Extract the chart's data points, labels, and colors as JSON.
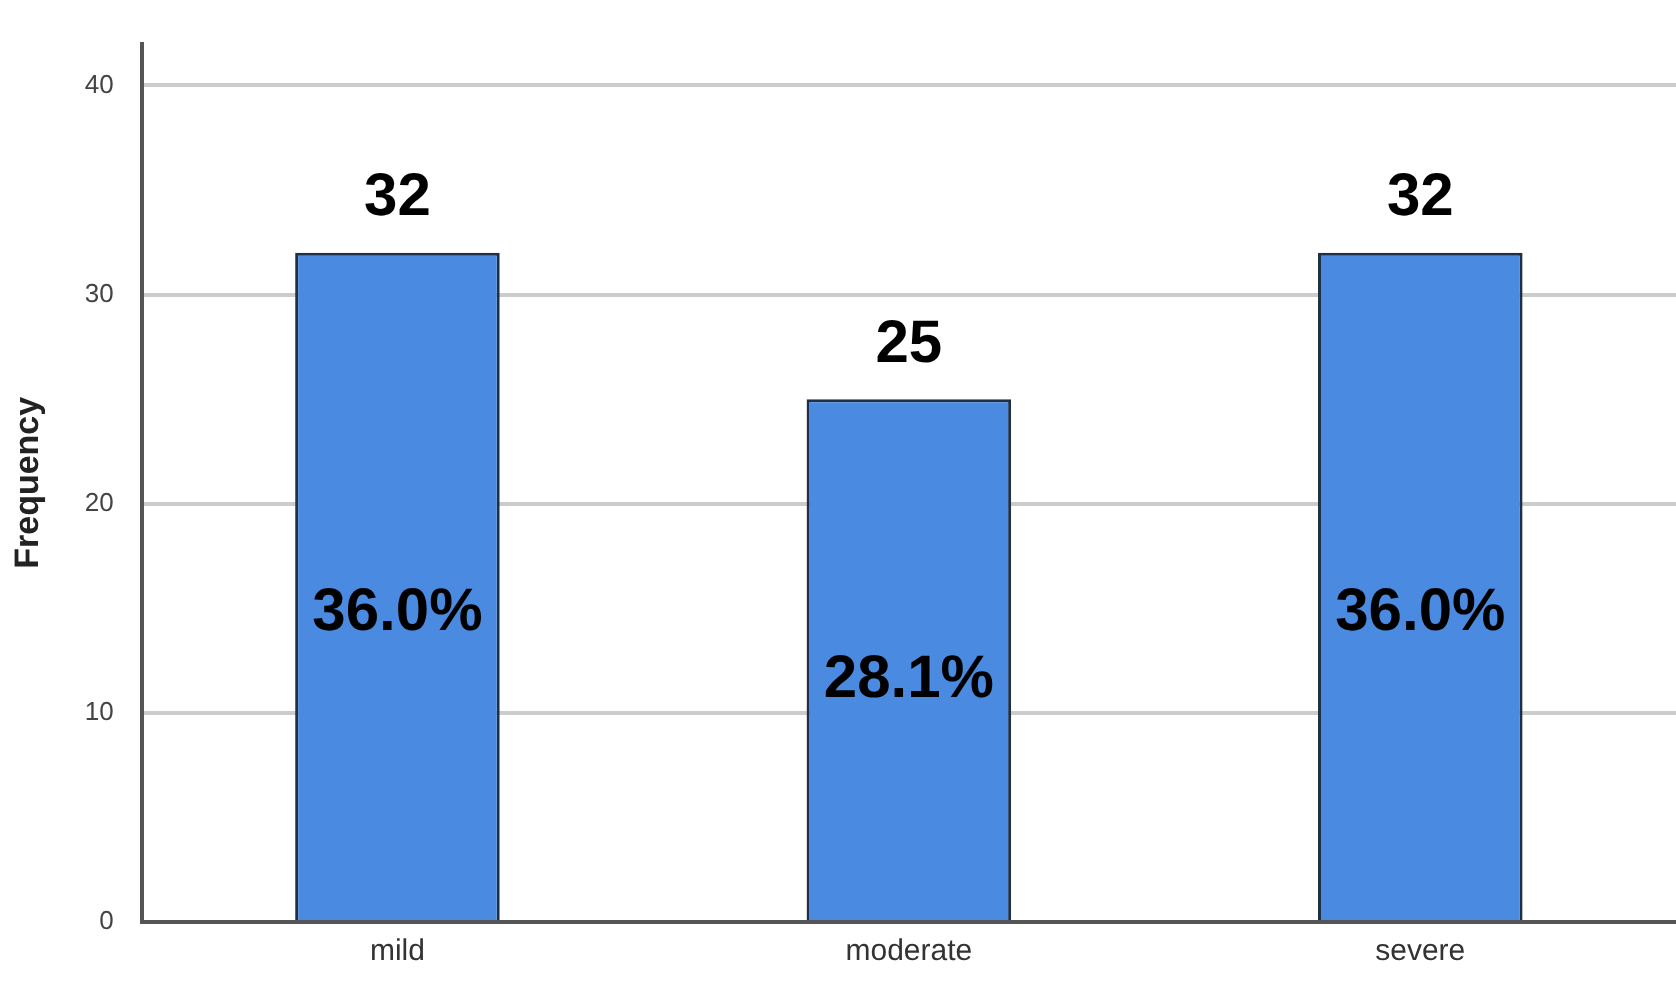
{
  "chart_data": {
    "type": "bar",
    "ylabel": "Frequency",
    "categories": [
      "mild",
      "moderate",
      "severe"
    ],
    "values": [
      32,
      25,
      32
    ],
    "color": "#4a8ae0",
    "ylim": [
      0,
      42
    ],
    "yticks": [
      0,
      10,
      20,
      30,
      40
    ],
    "grid": "y",
    "data_labels": true,
    "annotations": [
      "36.0%",
      "28.1%",
      "36.0%"
    ]
  }
}
